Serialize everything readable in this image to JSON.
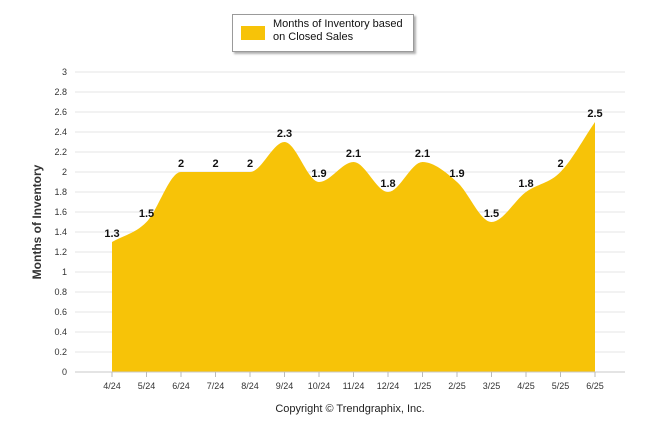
{
  "colors": {
    "area": "#F7C308",
    "grid": "#e6e6e6"
  },
  "legend": {
    "label": "Months of Inventory based on Closed Sales"
  },
  "copyright": "Copyright © Trendgraphix, Inc.",
  "chart_data": {
    "type": "area",
    "categories": [
      "4/24",
      "5/24",
      "6/24",
      "7/24",
      "8/24",
      "9/24",
      "10/24",
      "11/24",
      "12/24",
      "1/25",
      "2/25",
      "3/25",
      "4/25",
      "5/25",
      "6/25"
    ],
    "series": [
      {
        "name": "Months of Inventory based on Closed Sales",
        "values": [
          1.3,
          1.5,
          2,
          2,
          2,
          2.3,
          1.9,
          2.1,
          1.8,
          2.1,
          1.9,
          1.5,
          1.8,
          2,
          2.5
        ]
      }
    ],
    "data_labels": [
      "1.3",
      "1.5",
      "2",
      "2",
      "2",
      "2.3",
      "1.9",
      "2.1",
      "1.8",
      "2.1",
      "1.9",
      "1.5",
      "1.8",
      "2",
      "2.5"
    ],
    "ylabel": "Months of Inventory",
    "ylim": [
      0,
      3
    ],
    "yticks": [
      "0",
      "0.2",
      "0.4",
      "0.6",
      "0.8",
      "1",
      "1.2",
      "1.4",
      "1.6",
      "1.8",
      "2",
      "2.2",
      "2.4",
      "2.6",
      "2.8",
      "3"
    ],
    "grid": true,
    "legend_position": "top-center"
  }
}
